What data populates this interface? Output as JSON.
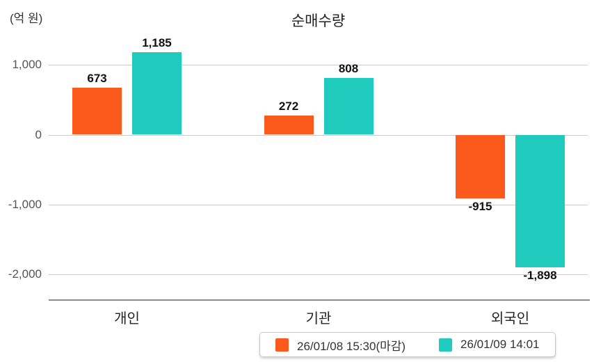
{
  "chart_data": {
    "type": "bar",
    "title": "순매수량",
    "unit_label": "(억 원)",
    "categories": [
      "개인",
      "기관",
      "외국인"
    ],
    "series": [
      {
        "name": "26/01/08 15:30(마감)",
        "color": "#FB5A1C",
        "values": [
          673,
          272,
          -915
        ]
      },
      {
        "name": "26/01/09 14:01",
        "color": "#1FCBBC",
        "values": [
          1185,
          808,
          -1898
        ]
      }
    ],
    "value_labels": [
      [
        "673",
        "272",
        "-915"
      ],
      [
        "1,185",
        "808",
        "-1,898"
      ]
    ],
    "yticks": [
      {
        "value": 1000,
        "label": "1,000"
      },
      {
        "value": 0,
        "label": "0"
      },
      {
        "value": -1000,
        "label": "-1,000"
      },
      {
        "value": -2000,
        "label": "-2,000"
      }
    ],
    "ylim": [
      -2300,
      1500
    ],
    "grid": true,
    "legend_position": "bottom",
    "xlabel": "",
    "ylabel": ""
  }
}
